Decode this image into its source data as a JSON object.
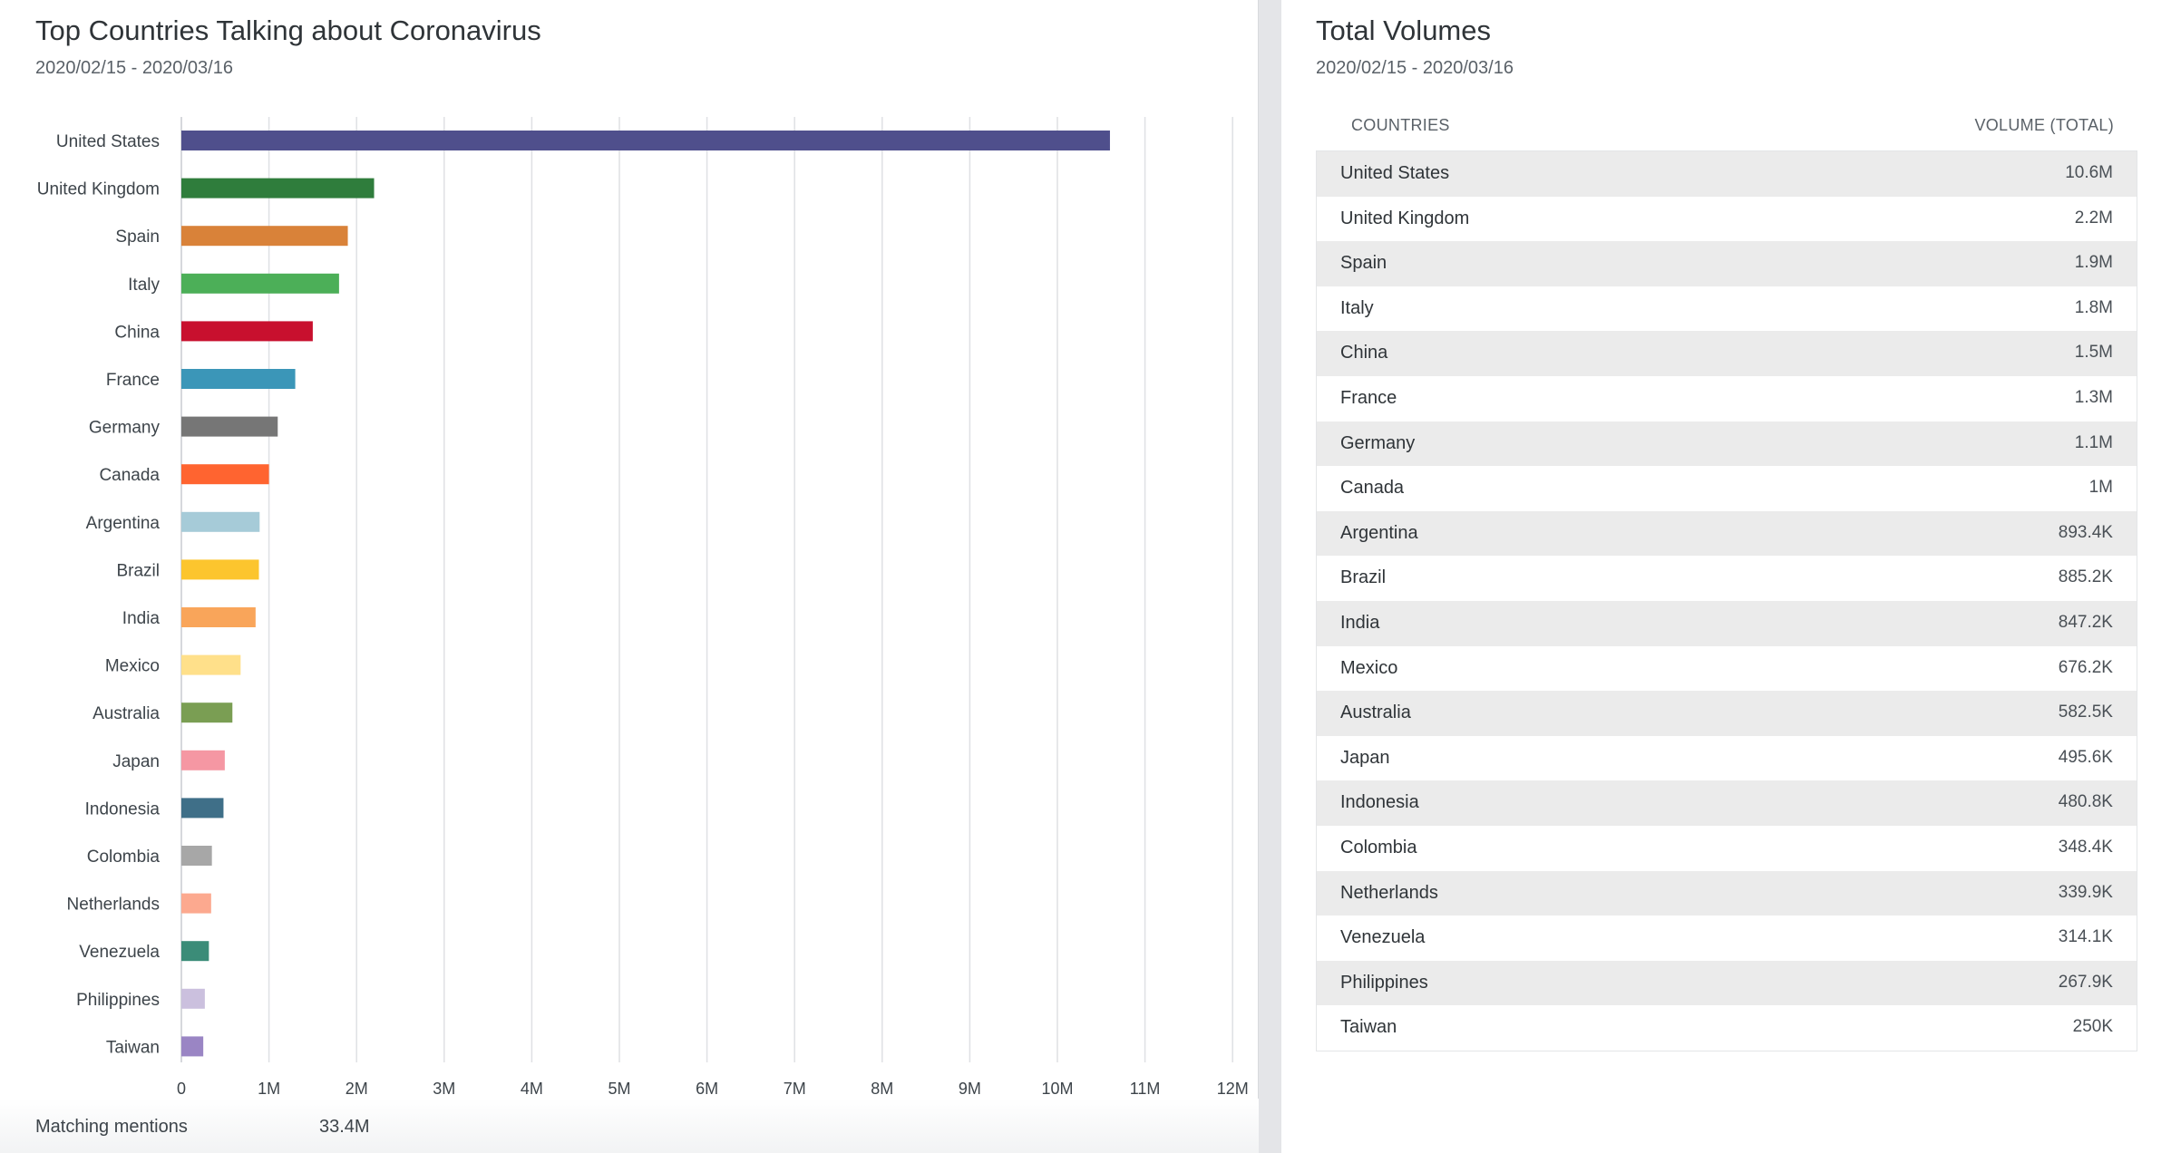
{
  "left_panel": {
    "title": "Top Countries Talking about Coronavirus",
    "subtitle": "2020/02/15 - 2020/03/16",
    "footer_label": "Matching mentions",
    "footer_value": "33.4M"
  },
  "right_panel": {
    "title": "Total Volumes",
    "subtitle": "2020/02/15 - 2020/03/16",
    "columns": [
      "COUNTRIES",
      "VOLUME (TOTAL)"
    ],
    "rows": [
      {
        "country": "United States",
        "volume": "10.6M"
      },
      {
        "country": "United Kingdom",
        "volume": "2.2M"
      },
      {
        "country": "Spain",
        "volume": "1.9M"
      },
      {
        "country": "Italy",
        "volume": "1.8M"
      },
      {
        "country": "China",
        "volume": "1.5M"
      },
      {
        "country": "France",
        "volume": "1.3M"
      },
      {
        "country": "Germany",
        "volume": "1.1M"
      },
      {
        "country": "Canada",
        "volume": "1M"
      },
      {
        "country": "Argentina",
        "volume": "893.4K"
      },
      {
        "country": "Brazil",
        "volume": "885.2K"
      },
      {
        "country": "India",
        "volume": "847.2K"
      },
      {
        "country": "Mexico",
        "volume": "676.2K"
      },
      {
        "country": "Australia",
        "volume": "582.5K"
      },
      {
        "country": "Japan",
        "volume": "495.6K"
      },
      {
        "country": "Indonesia",
        "volume": "480.8K"
      },
      {
        "country": "Colombia",
        "volume": "348.4K"
      },
      {
        "country": "Netherlands",
        "volume": "339.9K"
      },
      {
        "country": "Venezuela",
        "volume": "314.1K"
      },
      {
        "country": "Philippines",
        "volume": "267.9K"
      },
      {
        "country": "Taiwan",
        "volume": "250K"
      }
    ]
  },
  "chart_data": {
    "type": "bar",
    "orientation": "horizontal",
    "title": "Top Countries Talking about Coronavirus",
    "subtitle": "2020/02/15 - 2020/03/16",
    "xlabel": "",
    "ylabel": "",
    "xlim": [
      0,
      12000000
    ],
    "grid": true,
    "legend": "none",
    "x_ticks": [
      {
        "value": 0,
        "label": "0"
      },
      {
        "value": 1000000,
        "label": "1M"
      },
      {
        "value": 2000000,
        "label": "2M"
      },
      {
        "value": 3000000,
        "label": "3M"
      },
      {
        "value": 4000000,
        "label": "4M"
      },
      {
        "value": 5000000,
        "label": "5M"
      },
      {
        "value": 6000000,
        "label": "6M"
      },
      {
        "value": 7000000,
        "label": "7M"
      },
      {
        "value": 8000000,
        "label": "8M"
      },
      {
        "value": 9000000,
        "label": "9M"
      },
      {
        "value": 10000000,
        "label": "10M"
      },
      {
        "value": 11000000,
        "label": "11M"
      },
      {
        "value": 12000000,
        "label": "12M"
      }
    ],
    "categories": [
      "United States",
      "United Kingdom",
      "Spain",
      "Italy",
      "China",
      "France",
      "Germany",
      "Canada",
      "Argentina",
      "Brazil",
      "India",
      "Mexico",
      "Australia",
      "Japan",
      "Indonesia",
      "Colombia",
      "Netherlands",
      "Venezuela",
      "Philippines",
      "Taiwan"
    ],
    "values": [
      10600000,
      2200000,
      1900000,
      1800000,
      1500000,
      1300000,
      1100000,
      1000000,
      893400,
      885200,
      847200,
      676200,
      582500,
      495600,
      480800,
      348400,
      339900,
      314100,
      267900,
      250000
    ],
    "colors": [
      "#4f4f8c",
      "#2f7d3c",
      "#d98239",
      "#4caf58",
      "#c8102e",
      "#3b96b8",
      "#767676",
      "#ff6430",
      "#a6cbd8",
      "#fcc52e",
      "#f9a55a",
      "#ffe08a",
      "#7a9e53",
      "#f597a3",
      "#3f6f88",
      "#a7a7a7",
      "#fca98f",
      "#3b8c78",
      "#cbc0de",
      "#9a85c4"
    ]
  }
}
